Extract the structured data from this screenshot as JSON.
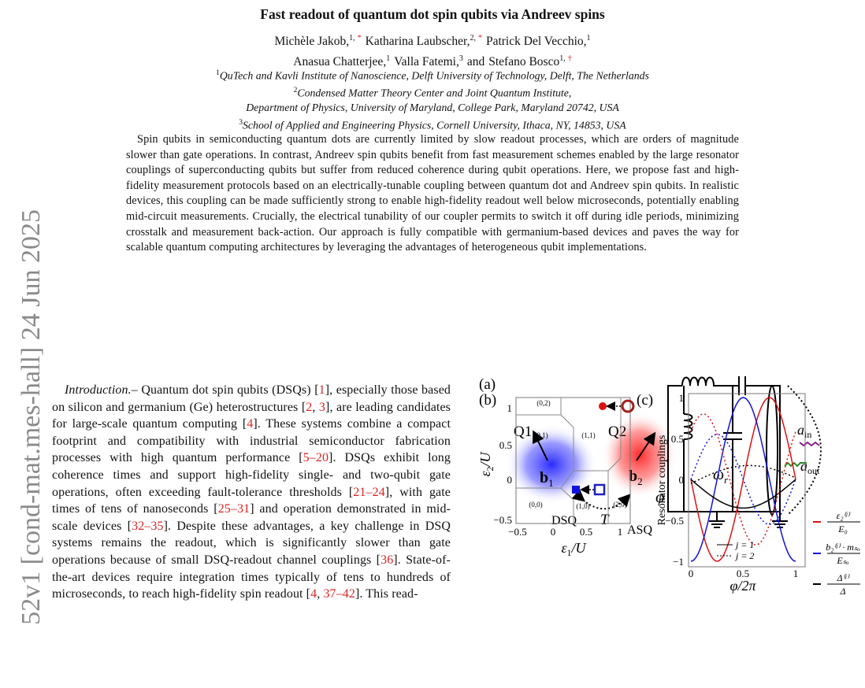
{
  "arxiv_stamp": "52v1  [cond-mat.mes-hall]  24 Jun 2025",
  "header": {
    "title": "Fast readout of quantum dot spin qubits via Andreev spins",
    "authors": {
      "lines": [
        [
          {
            "name": "Michèle Jakob,",
            "aff": "1,",
            "note": "*"
          },
          {
            "name": "Katharina Laubscher,",
            "aff": "2,",
            "note": "*"
          },
          {
            "name": "Patrick Del Vecchio,",
            "aff": "1"
          }
        ],
        [
          {
            "name": "Anasua Chatterjee,",
            "aff": "1"
          },
          {
            "name": "Valla Fatemi,",
            "aff": "3"
          },
          {
            "conjunction": "and",
            "name": "Stefano Bosco",
            "aff": "1,",
            "note": "†"
          }
        ]
      ]
    },
    "affiliations": [
      {
        "number": "1",
        "text": "QuTech and Kavli Institute of Nanoscience, Delft University of Technology, Delft, The Netherlands"
      },
      {
        "number": "2",
        "text": "Condensed Matter Theory Center and Joint Quantum Institute,"
      },
      {
        "text": "Department of Physics, University of Maryland, College Park, Maryland 20742, USA"
      },
      {
        "number": "3",
        "text": "School of Applied and Engineering Physics, Cornell University, Ithaca, NY, 14853, USA"
      }
    ]
  },
  "abstract": "Spin qubits in semiconducting quantum dots are currently limited by slow readout processes, which are orders of magnitude slower than gate operations. In contrast, Andreev spin qubits benefit from fast measurement schemes enabled by the large resonator couplings of superconducting qubits but suffer from reduced coherence during qubit operations. Here, we propose fast and high-fidelity measurement protocols based on an electrically-tunable coupling between quantum dot and Andreev spin qubits. In realistic devices, this coupling can be made sufficiently strong to enable high-fidelity readout well below microseconds, potentially enabling mid-circuit measurements. Crucially, the electrical tunability of our coupler permits to switch it off during idle periods, minimizing crosstalk and measurement back-action. Our approach is fully compatible with germanium-based devices and paves the way for scalable quantum computing architectures by leveraging the advantages of heterogeneous qubit implementations.",
  "body": {
    "parts": [
      {
        "italic": "Introduction.–"
      },
      {
        "text": " Quantum dot spin qubits (DSQs) ["
      },
      {
        "ref": "1"
      },
      {
        "text": "], especially those based on silicon and germanium (Ge) heterostructures ["
      },
      {
        "ref": "2"
      },
      {
        "text": ", "
      },
      {
        "ref": "3"
      },
      {
        "text": "], are leading candidates for large-scale quantum computing ["
      },
      {
        "ref": "4"
      },
      {
        "text": "]. These systems combine a compact footprint and compatibility with industrial semiconductor fabrication processes with high quantum performance ["
      },
      {
        "ref": "5–20"
      },
      {
        "text": "]. DSQs exhibit long coherence times and support high-fidelity single- and two-qubit gate operations, often exceeding fault-tolerance thresholds ["
      },
      {
        "ref": "21–24"
      },
      {
        "text": "], with gate times of tens of nanoseconds ["
      },
      {
        "ref": "25–31"
      },
      {
        "text": "] and operation demonstrated in mid-scale devices ["
      },
      {
        "ref": "32–35"
      },
      {
        "text": "]. Despite these advantages, a key challenge in DSQ systems remains the readout, which is significantly slower than gate operations because of small DSQ-readout channel couplings ["
      },
      {
        "ref": "36"
      },
      {
        "text": "]. State-of-the-art devices require integration times typically of tens to hundreds of microseconds, to reach high-fidelity spin readout ["
      },
      {
        "ref": "4"
      },
      {
        "text": ", "
      },
      {
        "ref": "37–42"
      },
      {
        "text": "]. This read-"
      }
    ]
  },
  "figure": {
    "panel_a": {
      "label": "(a)",
      "q1": "Q1",
      "q2": "Q2",
      "b1": {
        "main": "b",
        "sub": "1"
      },
      "b2": {
        "main": "b",
        "sub": "2"
      },
      "dsq": "DSQ",
      "tunneling": "T",
      "asq": "ASQ",
      "phase": "φ",
      "frequency": {
        "main": "ω",
        "sub": "r"
      },
      "input": {
        "main": "a",
        "sub": "in"
      },
      "output": {
        "main": "a",
        "sub": "out"
      }
    },
    "panel_b": {
      "label": "(b)",
      "regions": [
        "(0,2)",
        "(0,1)",
        "(1,1)",
        "(0,0)",
        "(1,0)",
        "(2,0)"
      ],
      "ylabel": {
        "main": "ε",
        "sub": "2",
        "rest": "/U"
      },
      "xlabel": {
        "main": "ε",
        "sub": "1",
        "rest": "/U"
      },
      "yticks": [
        "1",
        "0.5",
        "0",
        "−0.5"
      ],
      "xticks": [
        "−0.5",
        "0",
        "0.5",
        "1"
      ]
    },
    "panel_c": {
      "label": "(c)",
      "ylabel": "Resonator couplings",
      "yticks": [
        "1",
        "0.5",
        "0",
        "−0.5",
        "−1"
      ],
      "xticks": [
        "0",
        "0.5",
        "1"
      ],
      "xlabel": "φ/2π",
      "legend": [
        "j = 1",
        "j = 2"
      ],
      "curve_labels": [
        {
          "numerator": "ε₂⁽ʲ⁾",
          "denominator": "E₀"
        },
        {
          "numerator": "b₂⁽ʲ⁾ · mₛₒ",
          "denominator": "Eₛₒ"
        },
        {
          "numerator": "Δ⁽ʲ⁾",
          "denominator": "Δ"
        }
      ]
    }
  }
}
